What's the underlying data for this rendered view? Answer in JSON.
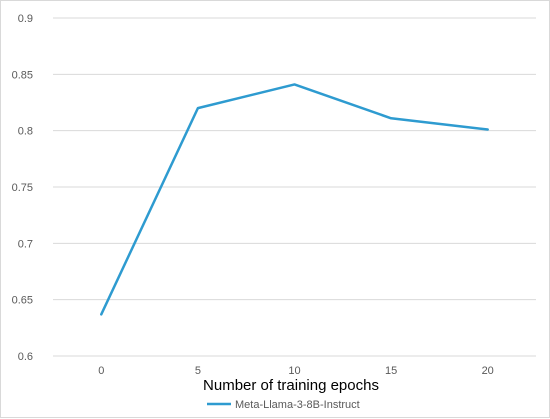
{
  "chart_data": {
    "type": "line",
    "title": "",
    "xlabel": "Number of training epochs",
    "ylabel": "",
    "x": [
      0,
      5,
      10,
      15,
      20
    ],
    "x_tick_labels": [
      "0",
      "5",
      "10",
      "15",
      "20"
    ],
    "y_tick_labels": [
      "0.6",
      "0.65",
      "0.7",
      "0.75",
      "0.8",
      "0.85",
      "0.9"
    ],
    "y_ticks": [
      0.6,
      0.65,
      0.7,
      0.75,
      0.8,
      0.85,
      0.9
    ],
    "ylim": [
      0.6,
      0.9
    ],
    "grid": true,
    "legend_position": "bottom",
    "series": [
      {
        "name": "Meta-Llama-3-8B-Instruct",
        "color": "#2e9bd0",
        "values": [
          0.637,
          0.82,
          0.841,
          0.811,
          0.801
        ]
      }
    ]
  }
}
